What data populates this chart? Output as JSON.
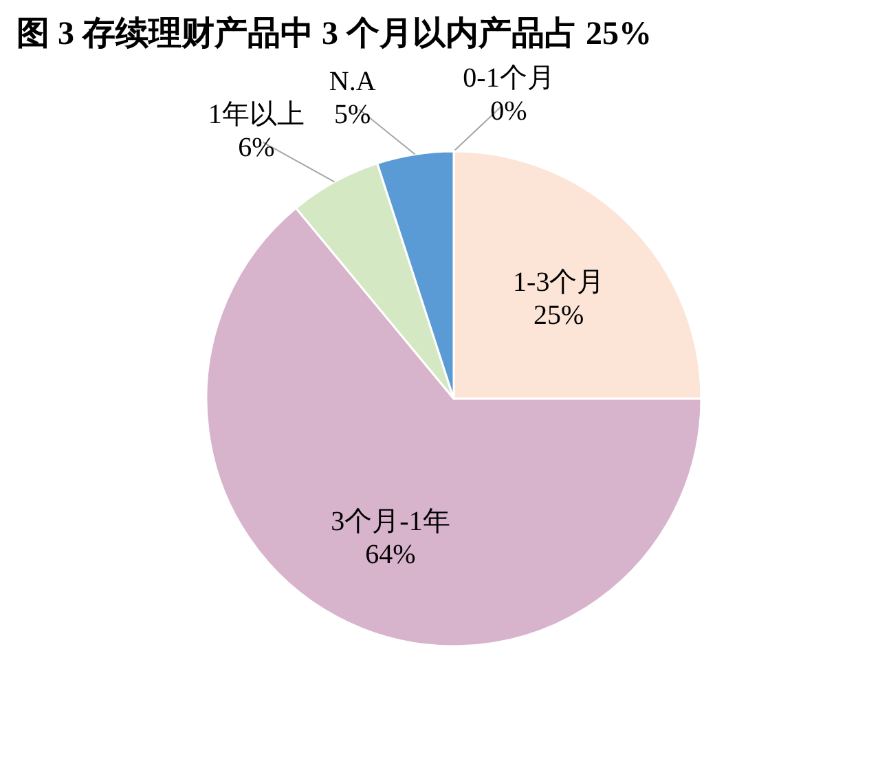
{
  "chart_data": {
    "type": "pie",
    "title": "图 3 存续理财产品中 3 个月以内产品占 25%",
    "categories": [
      "0-1个月",
      "1-3个月",
      "3个月-1年",
      "1年以上",
      "N.A"
    ],
    "values": [
      0,
      25,
      64,
      6,
      5
    ],
    "colors": [
      "#a6a6a6",
      "#fce4d6",
      "#d8b3cc",
      "#d5e8c4",
      "#5b9bd5"
    ],
    "value_labels": [
      "0%",
      "25%",
      "64%",
      "6%",
      "5%"
    ],
    "legend": false
  }
}
